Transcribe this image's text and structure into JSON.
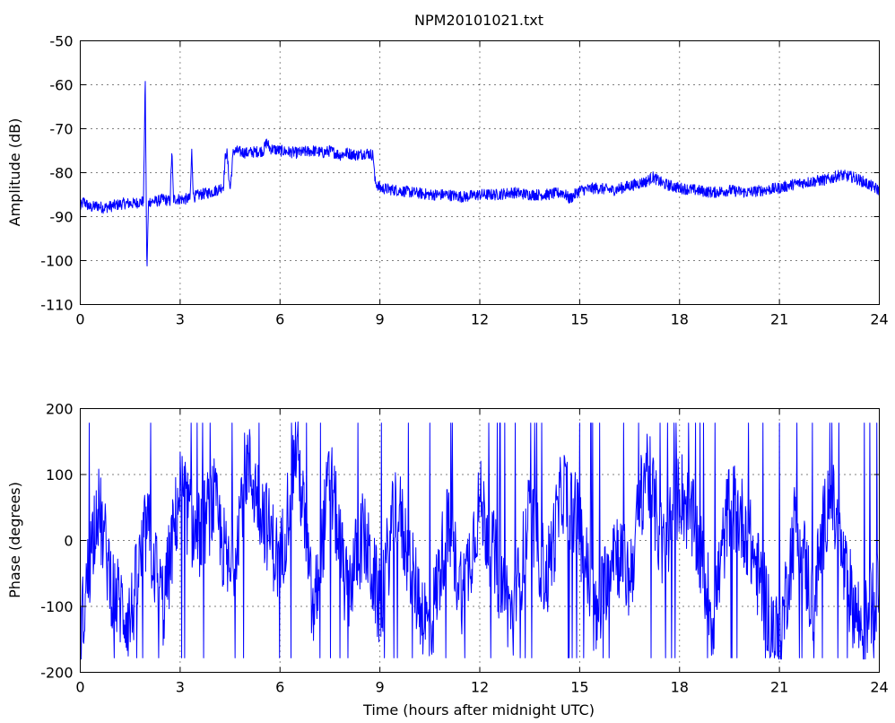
{
  "chart_data": [
    {
      "type": "line",
      "title": "NPM20101021.txt",
      "xlabel": "",
      "ylabel": "Amplitude (dB)",
      "xlim": [
        0,
        24
      ],
      "ylim": [
        -110,
        -50
      ],
      "xticks": [
        0,
        3,
        6,
        9,
        12,
        15,
        18,
        21,
        24
      ],
      "yticks": [
        -110,
        -100,
        -90,
        -80,
        -70,
        -60,
        -50
      ],
      "grid": true,
      "color": "#0000ff",
      "series": [
        {
          "x": [
            0,
            0.1,
            0.3,
            0.5,
            0.7,
            1.0,
            1.3,
            1.6,
            1.9,
            1.95,
            2.0,
            2.05,
            2.1,
            2.3,
            2.5,
            2.7,
            2.75,
            2.8,
            3.0,
            3.3,
            3.35,
            3.4,
            3.6,
            3.9,
            4.1,
            4.2,
            4.3,
            4.35,
            4.4,
            4.5,
            4.6,
            5.0,
            5.5,
            5.6,
            5.7,
            6.0,
            6.5,
            7.0,
            7.3,
            7.5,
            7.8,
            8.0,
            8.3,
            8.6,
            8.8,
            8.85,
            9.0,
            9.5,
            10.0,
            10.5,
            11.0,
            11.5,
            12.0,
            12.5,
            13.0,
            13.5,
            14.0,
            14.5,
            14.7,
            15.0,
            15.5,
            16.0,
            16.5,
            17.0,
            17.2,
            17.5,
            18.0,
            18.5,
            19.0,
            19.5,
            20.0,
            20.5,
            21.0,
            21.5,
            22.0,
            22.5,
            22.8,
            23.2,
            23.5,
            24.0
          ],
          "y": [
            -88,
            -86.5,
            -88,
            -87.5,
            -88,
            -87.5,
            -87,
            -87,
            -86.5,
            -58,
            -103,
            -87,
            -86.5,
            -86.5,
            -86,
            -86.5,
            -75,
            -86,
            -86,
            -86,
            -75,
            -85.5,
            -85,
            -84.5,
            -84,
            -83.5,
            -83,
            -77,
            -75,
            -84,
            -75,
            -75.5,
            -75,
            -73,
            -74.5,
            -75,
            -75.5,
            -75,
            -75.5,
            -75,
            -76,
            -75.5,
            -76,
            -75.5,
            -76,
            -82,
            -83.5,
            -84,
            -84.5,
            -85,
            -85,
            -85.5,
            -85,
            -85,
            -84.5,
            -85,
            -85,
            -84.5,
            -86,
            -84,
            -83.5,
            -84,
            -83,
            -82,
            -81,
            -82.5,
            -83.5,
            -84,
            -84.5,
            -84,
            -84.5,
            -84,
            -83.5,
            -82.5,
            -82,
            -81.5,
            -80.5,
            -81,
            -82,
            -84
          ]
        }
      ]
    },
    {
      "type": "line",
      "title": "",
      "xlabel": "Time (hours after midnight UTC)",
      "ylabel": "Phase (degrees)",
      "xlim": [
        0,
        24
      ],
      "ylim": [
        -200,
        200
      ],
      "xticks": [
        0,
        3,
        6,
        9,
        12,
        15,
        18,
        21,
        24
      ],
      "yticks": [
        -200,
        -100,
        0,
        100,
        200
      ],
      "grid": true,
      "color": "#0000ff",
      "series": [
        {
          "x": [
            0,
            0.5,
            1.0,
            1.5,
            2.0,
            2.5,
            3.0,
            3.5,
            4.0,
            4.5,
            5.0,
            5.5,
            6.0,
            6.5,
            7.0,
            7.5,
            8.0,
            8.5,
            9.0,
            9.5,
            10.0,
            10.5,
            11.0,
            11.5,
            12.0,
            12.5,
            13.0,
            13.5,
            14.0,
            14.5,
            15.0,
            15.5,
            16.0,
            16.5,
            17.0,
            17.5,
            18.0,
            18.5,
            19.0,
            19.5,
            20.0,
            20.5,
            21.0,
            21.5,
            22.0,
            22.5,
            23.0,
            23.5,
            24.0
          ],
          "y": [
            -150,
            60,
            -80,
            -120,
            20,
            -100,
            80,
            0,
            60,
            -60,
            120,
            40,
            -40,
            150,
            -120,
            100,
            -80,
            10,
            -100,
            60,
            -60,
            -140,
            20,
            -80,
            60,
            -40,
            -120,
            40,
            -60,
            80,
            20,
            -130,
            0,
            -60,
            120,
            -20,
            80,
            10,
            -120,
            60,
            20,
            -80,
            -160,
            40,
            -100,
            80,
            -60,
            -140,
            -60
          ]
        }
      ]
    }
  ]
}
